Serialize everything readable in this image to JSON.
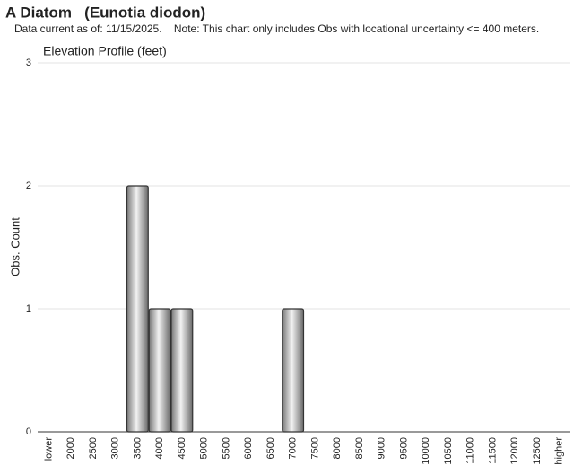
{
  "chart_data": {
    "type": "bar",
    "title": "A Diatom   (Eunotia diodon)",
    "subtitle": "Data current as of: 11/15/2025.    Note: This chart only includes Obs with locational uncertainty <= 400 meters.",
    "chart_title": "Elevation Profile (feet)",
    "y_label": "Obs. Count",
    "categories": [
      "lower",
      "2000",
      "2500",
      "3000",
      "3500",
      "4000",
      "4500",
      "5000",
      "5500",
      "6000",
      "6500",
      "7000",
      "7500",
      "8000",
      "8500",
      "9000",
      "9500",
      "10000",
      "10500",
      "11000",
      "11500",
      "12000",
      "12500",
      "higher"
    ],
    "values": [
      0,
      0,
      0,
      0,
      2,
      1,
      1,
      0,
      0,
      0,
      0,
      1,
      0,
      0,
      0,
      0,
      0,
      0,
      0,
      0,
      0,
      0,
      0,
      0
    ],
    "color": "#a0a0a0",
    "ylim": [
      0,
      3
    ],
    "yticks": [
      0,
      1,
      2,
      3
    ],
    "grid": true
  }
}
